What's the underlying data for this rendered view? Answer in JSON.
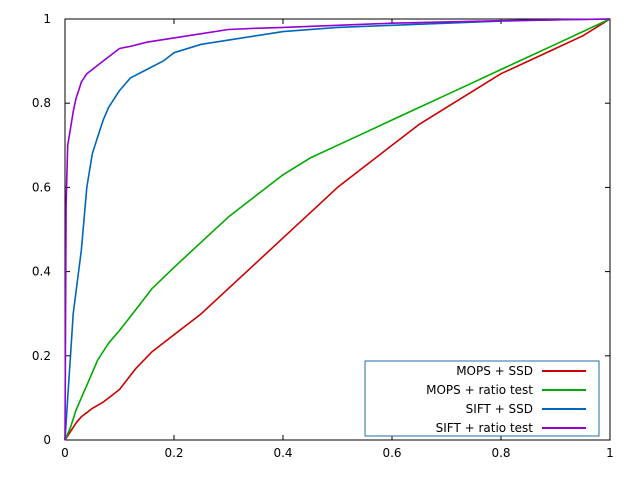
{
  "chart_data": {
    "type": "line",
    "title": "",
    "xlabel": "",
    "ylabel": "",
    "xlim": [
      0,
      1
    ],
    "ylim": [
      0,
      1
    ],
    "xticks": [
      0,
      0.2,
      0.4,
      0.6,
      0.8,
      1
    ],
    "xtick_labels": [
      "0",
      "0.2",
      "0.4",
      "0.6",
      "0.8",
      "1"
    ],
    "yticks": [
      0,
      0.2,
      0.4,
      0.6,
      0.8,
      1
    ],
    "ytick_labels": [
      "0",
      "0.2",
      "0.4",
      "0.6",
      "0.8",
      "1"
    ],
    "grid": false,
    "legend": "bottom-right",
    "series": [
      {
        "name": "MOPS + SSD",
        "color": "#cc0000",
        "x": [
          0,
          0.01,
          0.02,
          0.03,
          0.04,
          0.05,
          0.07,
          0.1,
          0.13,
          0.16,
          0.2,
          0.25,
          0.3,
          0.35,
          0.4,
          0.45,
          0.5,
          0.55,
          0.6,
          0.65,
          0.7,
          0.75,
          0.8,
          0.85,
          0.9,
          0.95,
          1
        ],
        "y": [
          0,
          0.02,
          0.04,
          0.055,
          0.065,
          0.075,
          0.09,
          0.12,
          0.17,
          0.21,
          0.25,
          0.3,
          0.36,
          0.42,
          0.48,
          0.54,
          0.6,
          0.65,
          0.7,
          0.75,
          0.79,
          0.83,
          0.87,
          0.9,
          0.93,
          0.96,
          1
        ]
      },
      {
        "name": "MOPS + ratio test",
        "color": "#00aa00",
        "x": [
          0,
          0.01,
          0.02,
          0.03,
          0.04,
          0.05,
          0.06,
          0.08,
          0.1,
          0.13,
          0.16,
          0.2,
          0.25,
          0.3,
          0.35,
          0.4,
          0.45,
          0.5,
          0.55,
          0.6,
          0.65,
          0.7,
          0.75,
          0.8,
          0.85,
          0.9,
          0.95,
          1
        ],
        "y": [
          0,
          0.03,
          0.07,
          0.1,
          0.13,
          0.16,
          0.19,
          0.23,
          0.26,
          0.31,
          0.36,
          0.41,
          0.47,
          0.53,
          0.58,
          0.63,
          0.67,
          0.7,
          0.73,
          0.76,
          0.79,
          0.82,
          0.85,
          0.88,
          0.91,
          0.94,
          0.97,
          1
        ]
      },
      {
        "name": "SIFT + SSD",
        "color": "#0066bb",
        "x": [
          0,
          0.005,
          0.01,
          0.015,
          0.02,
          0.03,
          0.04,
          0.05,
          0.06,
          0.07,
          0.08,
          0.1,
          0.12,
          0.15,
          0.18,
          0.2,
          0.25,
          0.3,
          0.35,
          0.4,
          0.5,
          0.6,
          0.7,
          0.8,
          0.9,
          1
        ],
        "y": [
          0,
          0.1,
          0.2,
          0.3,
          0.35,
          0.45,
          0.6,
          0.68,
          0.72,
          0.76,
          0.79,
          0.83,
          0.86,
          0.88,
          0.9,
          0.92,
          0.94,
          0.95,
          0.96,
          0.97,
          0.98,
          0.985,
          0.99,
          0.995,
          0.998,
          1
        ]
      },
      {
        "name": "SIFT + ratio test",
        "color": "#9400d3",
        "x": [
          0,
          0.002,
          0.005,
          0.01,
          0.015,
          0.02,
          0.03,
          0.04,
          0.05,
          0.06,
          0.08,
          0.1,
          0.12,
          0.15,
          0.2,
          0.25,
          0.3,
          0.35,
          0.4,
          0.5,
          0.6,
          0.7,
          0.8,
          0.9,
          1
        ],
        "y": [
          0,
          0.56,
          0.7,
          0.74,
          0.78,
          0.81,
          0.85,
          0.87,
          0.88,
          0.89,
          0.91,
          0.93,
          0.935,
          0.945,
          0.955,
          0.965,
          0.975,
          0.978,
          0.98,
          0.985,
          0.99,
          0.993,
          0.996,
          0.998,
          1
        ]
      }
    ]
  }
}
